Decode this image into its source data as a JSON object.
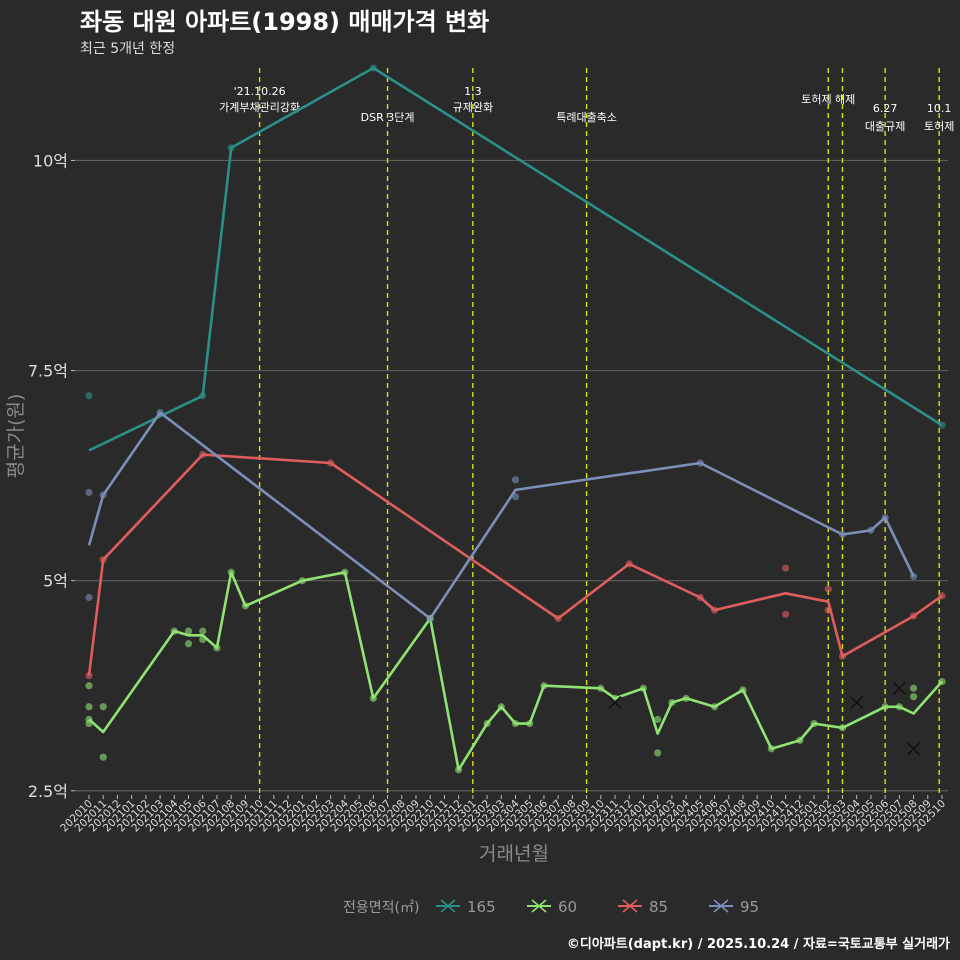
{
  "chart_data": {
    "type": "line",
    "title": "좌동 대원 아파트(1998) 매매가격 변화",
    "subtitle": "최근 5개년 한정",
    "xlabel": "거래년월",
    "ylabel": "평균가(원)",
    "ylim": [
      2.45,
      11.1
    ],
    "y_ticks": [
      {
        "value": 2.5,
        "label": "2.5억"
      },
      {
        "value": 5,
        "label": "5억"
      },
      {
        "value": 7.5,
        "label": "7.5억"
      },
      {
        "value": 10,
        "label": "10억"
      }
    ],
    "categories": [
      "202010",
      "202011",
      "202012",
      "202101",
      "202102",
      "202103",
      "202104",
      "202105",
      "202106",
      "202107",
      "202108",
      "202109",
      "202110",
      "202111",
      "202112",
      "202201",
      "202202",
      "202203",
      "202204",
      "202205",
      "202206",
      "202207",
      "202208",
      "202209",
      "202210",
      "202211",
      "202212",
      "202301",
      "202302",
      "202303",
      "202304",
      "202305",
      "202306",
      "202307",
      "202308",
      "202309",
      "202310",
      "202311",
      "202312",
      "202401",
      "202402",
      "202403",
      "202404",
      "202405",
      "202406",
      "202407",
      "202408",
      "202409",
      "202410",
      "202411",
      "202412",
      "202501",
      "202502",
      "202503",
      "202504",
      "202505",
      "202506",
      "202507",
      "202508",
      "202509",
      "202510"
    ],
    "legend_title": "전용면적(㎡)",
    "legend_position": "bottom",
    "series": [
      {
        "name": "165",
        "color": "#2a9088",
        "line": [
          [
            0,
            6.55
          ],
          [
            8,
            7.2
          ],
          [
            10,
            10.15
          ],
          [
            20,
            11.1
          ],
          [
            60,
            6.85
          ]
        ],
        "points": [
          [
            0,
            7.2
          ],
          [
            8,
            7.2
          ],
          [
            10,
            10.15
          ],
          [
            20,
            11.1
          ],
          [
            60,
            6.85
          ]
        ],
        "crosses": []
      },
      {
        "name": "60",
        "color": "#90e373",
        "line": [
          [
            0,
            3.35
          ],
          [
            1,
            3.2
          ],
          [
            6,
            4.4
          ],
          [
            7,
            4.35
          ],
          [
            8,
            4.35
          ],
          [
            9,
            4.2
          ],
          [
            10,
            5.1
          ],
          [
            11,
            4.7
          ],
          [
            15,
            5.0
          ],
          [
            18,
            5.1
          ],
          [
            20,
            3.6
          ],
          [
            24,
            4.55
          ],
          [
            26,
            2.75
          ],
          [
            28,
            3.3
          ],
          [
            29,
            3.5
          ],
          [
            30,
            3.3
          ],
          [
            31,
            3.3
          ],
          [
            32,
            3.75
          ],
          [
            36,
            3.72
          ],
          [
            37,
            3.6
          ],
          [
            39,
            3.72
          ],
          [
            40,
            3.18
          ],
          [
            41,
            3.55
          ],
          [
            42,
            3.6
          ],
          [
            44,
            3.5
          ],
          [
            46,
            3.7
          ],
          [
            48,
            3.0
          ],
          [
            50,
            3.1
          ],
          [
            51,
            3.3
          ],
          [
            53,
            3.25
          ],
          [
            56,
            3.5
          ],
          [
            57,
            3.5
          ],
          [
            58,
            3.42
          ],
          [
            60,
            3.8
          ]
        ],
        "points": [
          [
            0,
            3.75
          ],
          [
            0,
            3.5
          ],
          [
            0,
            3.3
          ],
          [
            0,
            3.35
          ],
          [
            1,
            3.5
          ],
          [
            1,
            2.9
          ],
          [
            6,
            4.4
          ],
          [
            7,
            4.4
          ],
          [
            7,
            4.25
          ],
          [
            8,
            4.4
          ],
          [
            8,
            4.3
          ],
          [
            9,
            4.2
          ],
          [
            10,
            5.1
          ],
          [
            11,
            4.7
          ],
          [
            15,
            5.0
          ],
          [
            18,
            5.1
          ],
          [
            20,
            3.6
          ],
          [
            24,
            4.55
          ],
          [
            26,
            2.75
          ],
          [
            28,
            3.3
          ],
          [
            29,
            3.5
          ],
          [
            30,
            3.3
          ],
          [
            31,
            3.3
          ],
          [
            32,
            3.75
          ],
          [
            36,
            3.72
          ],
          [
            37,
            3.6
          ],
          [
            39,
            3.72
          ],
          [
            40,
            3.35
          ],
          [
            40,
            2.95
          ],
          [
            41,
            3.55
          ],
          [
            42,
            3.6
          ],
          [
            44,
            3.5
          ],
          [
            46,
            3.7
          ],
          [
            48,
            3.0
          ],
          [
            50,
            3.1
          ],
          [
            51,
            3.3
          ],
          [
            53,
            3.25
          ],
          [
            56,
            3.5
          ],
          [
            57,
            3.5
          ],
          [
            58,
            3.72
          ],
          [
            58,
            3.62
          ],
          [
            60,
            3.8
          ]
        ],
        "crosses": [
          [
            37,
            3.55
          ],
          [
            58,
            3.0
          ]
        ]
      },
      {
        "name": "85",
        "color": "#e05d5d",
        "line": [
          [
            0,
            3.87
          ],
          [
            1,
            5.25
          ],
          [
            8,
            6.5
          ],
          [
            17,
            6.4
          ],
          [
            33,
            4.55
          ],
          [
            38,
            5.2
          ],
          [
            43,
            4.8
          ],
          [
            44,
            4.65
          ],
          [
            49,
            4.85
          ],
          [
            52,
            4.75
          ],
          [
            53,
            4.1
          ],
          [
            58,
            4.58
          ],
          [
            60,
            4.82
          ]
        ],
        "points": [
          [
            0,
            3.87
          ],
          [
            1,
            5.25
          ],
          [
            8,
            6.5
          ],
          [
            17,
            6.4
          ],
          [
            33,
            4.55
          ],
          [
            38,
            5.2
          ],
          [
            43,
            4.8
          ],
          [
            44,
            4.65
          ],
          [
            49,
            5.15
          ],
          [
            49,
            4.6
          ],
          [
            52,
            4.9
          ],
          [
            52,
            4.65
          ],
          [
            53,
            4.1
          ],
          [
            58,
            4.58
          ],
          [
            60,
            4.82
          ]
        ],
        "crosses": []
      },
      {
        "name": "95",
        "color": "#7b8fb8",
        "line": [
          [
            0,
            5.42
          ],
          [
            1,
            6.02
          ],
          [
            5,
            7.0
          ],
          [
            24,
            4.55
          ],
          [
            30,
            6.08
          ],
          [
            43,
            6.4
          ],
          [
            53,
            5.55
          ],
          [
            55,
            5.6
          ],
          [
            56,
            5.75
          ],
          [
            58,
            5.05
          ]
        ],
        "points": [
          [
            0,
            6.05
          ],
          [
            0,
            4.8
          ],
          [
            1,
            6.02
          ],
          [
            5,
            7.0
          ],
          [
            24,
            4.55
          ],
          [
            30,
            6.2
          ],
          [
            30,
            6.0
          ],
          [
            43,
            6.4
          ],
          [
            53,
            5.55
          ],
          [
            55,
            5.6
          ],
          [
            56,
            5.75
          ],
          [
            58,
            5.05
          ]
        ],
        "crosses": [
          [
            54,
            3.55
          ],
          [
            57,
            3.72
          ]
        ]
      }
    ],
    "events": [
      {
        "x": 12.0,
        "line1": "'21.10.26",
        "line2": "가계부채관리강화"
      },
      {
        "x": 21.0,
        "line1": "",
        "line2": "DSR 3단계"
      },
      {
        "x": 27.0,
        "line1": "1.3",
        "line2": "규제완화"
      },
      {
        "x": 35.0,
        "line1": "",
        "line2": "특례대출축소"
      },
      {
        "x": 52.0,
        "line1": "토허제 해제",
        "line2": ""
      },
      {
        "x": 53.0,
        "line1": "",
        "line2": ""
      },
      {
        "x": 56.0,
        "line1": "6.27",
        "line2": "대출규제"
      },
      {
        "x": 59.8,
        "line1": "10.1",
        "line2": "토허제"
      }
    ],
    "caption": "©디아파트(dapt.kr) / 2025.10.24 / 자료=국토교통부 실거래가"
  }
}
